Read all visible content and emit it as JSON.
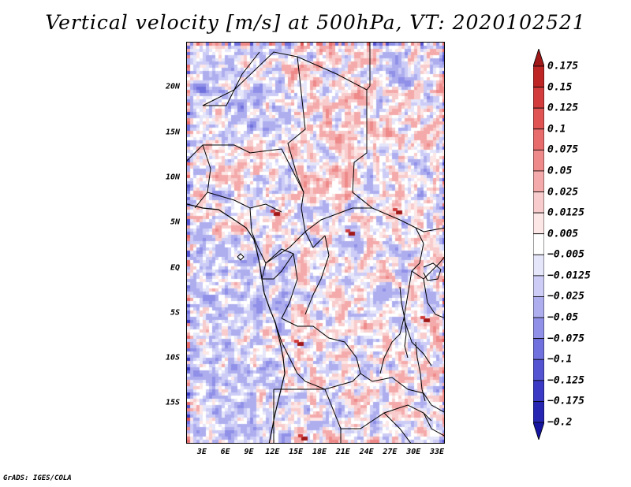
{
  "title": "Vertical velocity [m/s] at 500hPa, VT: 2020102521",
  "credit": "GrADS: IGES/COLA",
  "map": {
    "variable": "vertical velocity",
    "level": "500hPa",
    "valid_time": "2020102521",
    "lon_range": [
      1,
      34
    ],
    "lat_range": [
      -19.5,
      25
    ],
    "lon_ticks": [
      "3E",
      "6E",
      "9E",
      "12E",
      "15E",
      "18E",
      "21E",
      "24E",
      "27E",
      "30E",
      "33E"
    ],
    "lat_ticks": [
      "20N",
      "15N",
      "10N",
      "5N",
      "EQ",
      "5S",
      "10S",
      "15S"
    ],
    "lon_values": [
      3,
      6,
      9,
      12,
      15,
      18,
      21,
      24,
      27,
      30,
      33
    ],
    "lat_values": [
      20,
      15,
      10,
      5,
      0,
      -5,
      -10,
      -15
    ],
    "border_color": "#000000"
  },
  "colorbar": {
    "labels": [
      "0.175",
      "0.15",
      "0.125",
      "0.1",
      "0.075",
      "0.05",
      "0.025",
      "0.0125",
      "0.005",
      "−0.005",
      "−0.0125",
      "−0.025",
      "−0.05",
      "−0.075",
      "−0.1",
      "−0.125",
      "−0.175",
      "−0.2"
    ],
    "colors": [
      "#a01818",
      "#be2626",
      "#d23c3c",
      "#e05454",
      "#e86c6c",
      "#ee8a8a",
      "#f4aaaa",
      "#f8cccc",
      "#fce6e6",
      "#ffffff",
      "#e6e6fa",
      "#ccccf6",
      "#aeaeef",
      "#9090e8",
      "#7070de",
      "#5454d2",
      "#3a3ac4",
      "#2626b2",
      "#1414a0"
    ],
    "extend": "both"
  }
}
